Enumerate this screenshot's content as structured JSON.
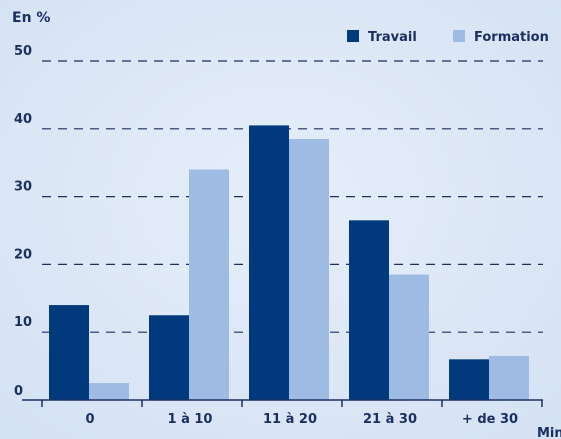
{
  "chart_data": {
    "type": "bar",
    "ylabel": "En %",
    "xlabel": "Min",
    "ylim": [
      0,
      50
    ],
    "yticks": [
      0,
      10,
      20,
      30,
      40,
      50
    ],
    "grid": true,
    "legend_position": "top-right",
    "categories": [
      "0",
      "1 à 10",
      "11 à 20",
      "21 à 30",
      "+ de 30"
    ],
    "series": [
      {
        "name": "Travail",
        "color": "#003a7d",
        "values": [
          14,
          12.5,
          40.5,
          26.5,
          6
        ]
      },
      {
        "name": "Formation",
        "color": "#9ebbe4",
        "values": [
          2.5,
          34,
          38.5,
          18.5,
          6.5
        ]
      }
    ]
  }
}
